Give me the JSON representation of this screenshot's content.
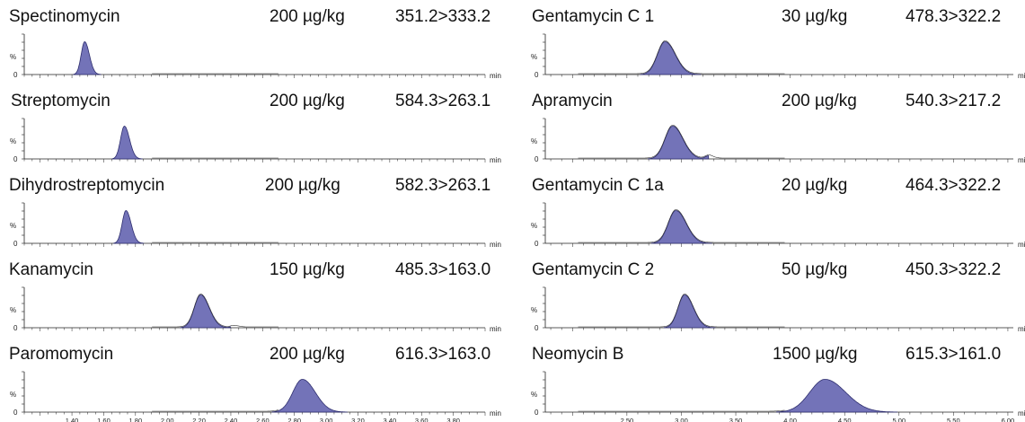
{
  "chart_data": [
    {
      "type": "line",
      "title": "Spectinomycin",
      "concentration": "200 µg/kg",
      "transition": "351.2>333.2",
      "ylabel": "%",
      "xlabel": "min",
      "xlim": [
        1.1,
        4.0
      ],
      "peaks": [
        {
          "rt": 1.48,
          "height": 0.85,
          "width": 0.022
        }
      ]
    },
    {
      "type": "line",
      "title": "Streptomycin",
      "concentration": "200 µg/kg",
      "transition": "584.3>263.1",
      "ylabel": "%",
      "xlabel": "min",
      "xlim": [
        1.1,
        4.0
      ],
      "peaks": [
        {
          "rt": 1.73,
          "height": 0.85,
          "width": 0.024
        }
      ]
    },
    {
      "type": "line",
      "title": "Dihydrostreptomycin",
      "concentration": "200 µg/kg",
      "transition": "582.3>263.1",
      "ylabel": "%",
      "xlabel": "min",
      "xlim": [
        1.1,
        4.0
      ],
      "peaks": [
        {
          "rt": 1.74,
          "height": 0.85,
          "width": 0.024
        }
      ]
    },
    {
      "type": "line",
      "title": "Kanamycin",
      "concentration": "150 µg/kg",
      "transition": "485.3>163.0",
      "ylabel": "%",
      "xlabel": "min",
      "xlim": [
        1.1,
        4.0
      ],
      "peaks": [
        {
          "rt": 2.21,
          "height": 0.85,
          "width": 0.04
        },
        {
          "rt": 2.42,
          "height": 0.04,
          "width": 0.02
        }
      ]
    },
    {
      "type": "line",
      "title": "Paromomycin",
      "concentration": "200 µg/kg",
      "transition": "616.3>163.0",
      "ylabel": "%",
      "xlabel": "min",
      "xlim": [
        1.1,
        4.0
      ],
      "xticks": [
        "1.40",
        "1.60",
        "1.80",
        "2.00",
        "2.20",
        "2.40",
        "2.60",
        "2.80",
        "3.00",
        "3.20",
        "3.40",
        "3.60",
        "3.80"
      ],
      "peaks": [
        {
          "rt": 2.85,
          "height": 0.85,
          "width": 0.06
        }
      ]
    },
    {
      "type": "line",
      "title": "Gentamycin C 1",
      "concentration": "30 µg/kg",
      "transition": "478.3>322.2",
      "ylabel": "%",
      "xlabel": "min",
      "xlim": [
        1.75,
        6.05
      ],
      "peaks": [
        {
          "rt": 2.85,
          "height": 0.85,
          "width": 0.07
        }
      ]
    },
    {
      "type": "line",
      "title": "Apramycin",
      "concentration": "200 µg/kg",
      "transition": "540.3>217.2",
      "ylabel": "%",
      "xlabel": "min",
      "xlim": [
        1.75,
        6.05
      ],
      "peaks": [
        {
          "rt": 2.92,
          "height": 0.85,
          "width": 0.07
        },
        {
          "rt": 3.25,
          "height": 0.08,
          "width": 0.03
        }
      ]
    },
    {
      "type": "line",
      "title": "Gentamycin C 1a",
      "concentration": "20 µg/kg",
      "transition": "464.3>322.2",
      "ylabel": "%",
      "xlabel": "min",
      "xlim": [
        1.75,
        6.05
      ],
      "peaks": [
        {
          "rt": 2.95,
          "height": 0.85,
          "width": 0.07
        }
      ]
    },
    {
      "type": "line",
      "title": "Gentamycin C 2",
      "concentration": "50 µg/kg",
      "transition": "450.3>322.2",
      "ylabel": "%",
      "xlabel": "min",
      "xlim": [
        1.75,
        6.05
      ],
      "peaks": [
        {
          "rt": 3.03,
          "height": 0.85,
          "width": 0.06
        }
      ]
    },
    {
      "type": "line",
      "title": "Neomycin B",
      "concentration": "1500 µg/kg",
      "transition": "615.3>161.0",
      "ylabel": "%",
      "xlabel": "min",
      "xlim": [
        1.75,
        6.05
      ],
      "xticks": [
        "2.50",
        "3.00",
        "3.50",
        "4.00",
        "4.50",
        "5.00",
        "5.50",
        "6.00"
      ],
      "peaks": [
        {
          "rt": 4.32,
          "height": 0.85,
          "width": 0.14
        }
      ]
    }
  ],
  "colors": {
    "fill": "#7373b8",
    "stroke": "#2e2e6e",
    "text": "#111111"
  }
}
